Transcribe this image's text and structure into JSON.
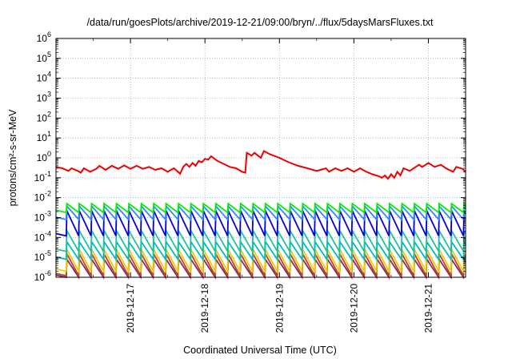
{
  "chart_data": {
    "type": "line",
    "title": "/data/run/goesPlots/archive/2019-12-21/09:00/bryn/../flux/5daysMarsFluxes.txt",
    "xlabel": "Coordinated Universal Time (UTC)",
    "ylabel": "protons/cm²-s-sr-MeV",
    "y_scale": "log",
    "ylim": [
      1e-06,
      1000000.0
    ],
    "xlim": [
      "2019-12-16T00:00",
      "2019-12-21T12:00"
    ],
    "x_ticks": [
      "2019-12-17",
      "2019-12-18",
      "2019-12-19",
      "2019-12-20",
      "2019-12-21"
    ],
    "y_ticks": [
      {
        "base": "10",
        "exp": "-6"
      },
      {
        "base": "10",
        "exp": "-5"
      },
      {
        "base": "10",
        "exp": "-4"
      },
      {
        "base": "10",
        "exp": "-3"
      },
      {
        "base": "10",
        "exp": "-2"
      },
      {
        "base": "10",
        "exp": "-1"
      },
      {
        "base": "10",
        "exp": "0"
      },
      {
        "base": "10",
        "exp": "1"
      },
      {
        "base": "10",
        "exp": "2"
      },
      {
        "base": "10",
        "exp": "3"
      },
      {
        "base": "10",
        "exp": "4"
      },
      {
        "base": "10",
        "exp": "5"
      },
      {
        "base": "10",
        "exp": "6"
      }
    ],
    "grid": true,
    "sawtooth_peaks": [
      "2019-12-16T03:30",
      "2019-12-16T07:30",
      "2019-12-16T11:30",
      "2019-12-16T15:30",
      "2019-12-16T19:30",
      "2019-12-16T23:30",
      "2019-12-17T03:30",
      "2019-12-17T07:30",
      "2019-12-17T11:30",
      "2019-12-17T15:30",
      "2019-12-17T19:30",
      "2019-12-17T23:30",
      "2019-12-18T03:30",
      "2019-12-18T07:30",
      "2019-12-18T11:30",
      "2019-12-18T15:30",
      "2019-12-18T19:30",
      "2019-12-18T23:30",
      "2019-12-19T03:30",
      "2019-12-19T07:30",
      "2019-12-19T11:30",
      "2019-12-19T15:30",
      "2019-12-19T19:30",
      "2019-12-19T23:30",
      "2019-12-20T03:30",
      "2019-12-20T07:30",
      "2019-12-20T11:30",
      "2019-12-20T15:30",
      "2019-12-20T19:30",
      "2019-12-20T23:30",
      "2019-12-21T03:30",
      "2019-12-21T07:30",
      "2019-12-21T11:30"
    ],
    "series": [
      {
        "color": "#ee0000",
        "style": "smooth",
        "points": [
          [
            "2019-12-16T00:00",
            0.35
          ],
          [
            "2019-12-16T02:00",
            0.3
          ],
          [
            "2019-12-16T04:00",
            0.22
          ],
          [
            "2019-12-16T05:00",
            0.3
          ],
          [
            "2019-12-16T07:00",
            0.22
          ],
          [
            "2019-12-16T08:00",
            0.18
          ],
          [
            "2019-12-16T09:00",
            0.3
          ],
          [
            "2019-12-16T11:00",
            0.2
          ],
          [
            "2019-12-16T13:00",
            0.28
          ],
          [
            "2019-12-16T14:00",
            0.4
          ],
          [
            "2019-12-16T16:00",
            0.25
          ],
          [
            "2019-12-16T18:00",
            0.4
          ],
          [
            "2019-12-16T20:00",
            0.28
          ],
          [
            "2019-12-16T22:00",
            0.42
          ],
          [
            "2019-12-17T00:00",
            0.28
          ],
          [
            "2019-12-17T02:00",
            0.4
          ],
          [
            "2019-12-17T04:00",
            0.28
          ],
          [
            "2019-12-17T06:00",
            0.35
          ],
          [
            "2019-12-17T08:00",
            0.25
          ],
          [
            "2019-12-17T10:00",
            0.3
          ],
          [
            "2019-12-17T12:00",
            0.2
          ],
          [
            "2019-12-17T14:00",
            0.3
          ],
          [
            "2019-12-17T16:00",
            0.16
          ],
          [
            "2019-12-17T17:00",
            0.35
          ],
          [
            "2019-12-17T18:00",
            0.5
          ],
          [
            "2019-12-17T19:00",
            0.35
          ],
          [
            "2019-12-17T20:00",
            0.55
          ],
          [
            "2019-12-17T21:00",
            0.4
          ],
          [
            "2019-12-17T22:00",
            0.7
          ],
          [
            "2019-12-17T23:00",
            0.6
          ],
          [
            "2019-12-18T00:00",
            0.9
          ],
          [
            "2019-12-18T01:00",
            0.8
          ],
          [
            "2019-12-18T02:00",
            1.2
          ],
          [
            "2019-12-18T04:00",
            0.7
          ],
          [
            "2019-12-18T06:00",
            0.5
          ],
          [
            "2019-12-18T08:00",
            0.35
          ],
          [
            "2019-12-18T10:00",
            0.3
          ],
          [
            "2019-12-18T12:00",
            0.2
          ],
          [
            "2019-12-18T13:00",
            0.18
          ],
          [
            "2019-12-18T13:30",
            1.8
          ],
          [
            "2019-12-18T15:00",
            1.3
          ],
          [
            "2019-12-18T16:00",
            1.8
          ],
          [
            "2019-12-18T18:00",
            1.0
          ],
          [
            "2019-12-18T19:00",
            2.2
          ],
          [
            "2019-12-18T21:00",
            1.5
          ],
          [
            "2019-12-19T00:00",
            1.0
          ],
          [
            "2019-12-19T03:00",
            0.6
          ],
          [
            "2019-12-19T06:00",
            0.4
          ],
          [
            "2019-12-19T09:00",
            0.3
          ],
          [
            "2019-12-19T12:00",
            0.22
          ],
          [
            "2019-12-19T15:00",
            0.3
          ],
          [
            "2019-12-19T16:00",
            0.2
          ],
          [
            "2019-12-19T18:00",
            0.3
          ],
          [
            "2019-12-19T20:00",
            0.22
          ],
          [
            "2019-12-19T22:00",
            0.3
          ],
          [
            "2019-12-20T00:00",
            0.2
          ],
          [
            "2019-12-20T02:00",
            0.3
          ],
          [
            "2019-12-20T04:00",
            0.2
          ],
          [
            "2019-12-20T06:00",
            0.15
          ],
          [
            "2019-12-20T08:00",
            0.12
          ],
          [
            "2019-12-20T09:00",
            0.1
          ],
          [
            "2019-12-20T10:00",
            0.13
          ],
          [
            "2019-12-20T11:00",
            0.09
          ],
          [
            "2019-12-20T12:00",
            0.15
          ],
          [
            "2019-12-20T13:00",
            0.1
          ],
          [
            "2019-12-20T14:00",
            0.2
          ],
          [
            "2019-12-20T15:00",
            0.13
          ],
          [
            "2019-12-20T16:00",
            0.3
          ],
          [
            "2019-12-20T18:00",
            0.22
          ],
          [
            "2019-12-20T19:00",
            0.28
          ],
          [
            "2019-12-20T21:00",
            0.45
          ],
          [
            "2019-12-20T22:00",
            0.35
          ],
          [
            "2019-12-21T00:00",
            0.55
          ],
          [
            "2019-12-21T02:00",
            0.35
          ],
          [
            "2019-12-21T04:00",
            0.45
          ],
          [
            "2019-12-21T06:00",
            0.28
          ],
          [
            "2019-12-21T08:00",
            0.2
          ],
          [
            "2019-12-21T09:00",
            0.35
          ],
          [
            "2019-12-21T11:00",
            0.28
          ],
          [
            "2019-12-21T12:00",
            0.2
          ]
        ]
      },
      {
        "color": "#00ee00",
        "style": "sawtooth",
        "peak": 0.005,
        "trough": 0.0018
      },
      {
        "color": "#3388ff",
        "style": "sawtooth",
        "peak": 0.0038,
        "trough": 0.0008
      },
      {
        "color": "#0000dd",
        "style": "sawtooth",
        "peak": 0.0022,
        "trough": 0.00012
      },
      {
        "color": "#20c0a0",
        "style": "sawtooth",
        "peak": 0.00022,
        "trough": 2e-05
      },
      {
        "color": "#00bbbb",
        "style": "sawtooth",
        "peak": 6e-05,
        "trough": 8e-06
      },
      {
        "color": "#e8d000",
        "style": "sawtooth",
        "peak": 2.5e-05,
        "trough": 2e-06
      },
      {
        "color": "#c04030",
        "style": "sawtooth",
        "peak": 1.5e-05,
        "trough": 1.2e-06
      },
      {
        "color": "#803060",
        "style": "sawtooth",
        "peak": 8e-06,
        "trough": 1e-06
      }
    ]
  }
}
